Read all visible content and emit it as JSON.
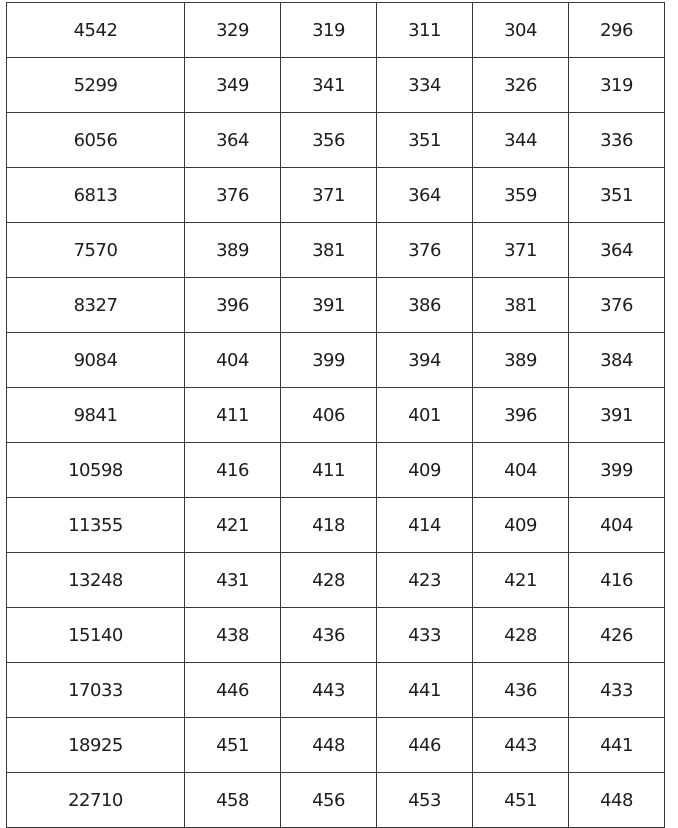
{
  "table": {
    "rows": [
      [
        "4542",
        "329",
        "319",
        "311",
        "304",
        "296"
      ],
      [
        "5299",
        "349",
        "341",
        "334",
        "326",
        "319"
      ],
      [
        "6056",
        "364",
        "356",
        "351",
        "344",
        "336"
      ],
      [
        "6813",
        "376",
        "371",
        "364",
        "359",
        "351"
      ],
      [
        "7570",
        "389",
        "381",
        "376",
        "371",
        "364"
      ],
      [
        "8327",
        "396",
        "391",
        "386",
        "381",
        "376"
      ],
      [
        "9084",
        "404",
        "399",
        "394",
        "389",
        "384"
      ],
      [
        "9841",
        "411",
        "406",
        "401",
        "396",
        "391"
      ],
      [
        "10598",
        "416",
        "411",
        "409",
        "404",
        "399"
      ],
      [
        "11355",
        "421",
        "418",
        "414",
        "409",
        "404"
      ],
      [
        "13248",
        "431",
        "428",
        "423",
        "421",
        "416"
      ],
      [
        "15140",
        "438",
        "436",
        "433",
        "428",
        "426"
      ],
      [
        "17033",
        "446",
        "443",
        "441",
        "436",
        "433"
      ],
      [
        "18925",
        "451",
        "448",
        "446",
        "443",
        "441"
      ],
      [
        "22710",
        "458",
        "456",
        "453",
        "451",
        "448"
      ]
    ]
  }
}
